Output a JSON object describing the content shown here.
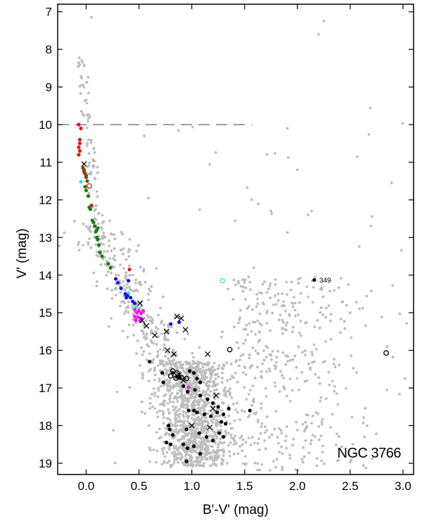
{
  "chart_data": {
    "type": "scatter",
    "title": "",
    "xlabel": "B'-V' (mag)",
    "ylabel": "V' (mag)",
    "xlim": [
      -0.27,
      3.1
    ],
    "ylim": [
      19.3,
      6.8
    ],
    "y_inverted": true,
    "x_ticks": [
      {
        "v": 0,
        "t": "0.0"
      },
      {
        "v": 0.5,
        "t": "0.5"
      },
      {
        "v": 1.0,
        "t": "1.0"
      },
      {
        "v": 1.5,
        "t": "1.5"
      },
      {
        "v": 2.0,
        "t": "2.0"
      },
      {
        "v": 2.5,
        "t": "2.5"
      },
      {
        "v": 3.0,
        "t": "3.0"
      }
    ],
    "y_ticks": [
      {
        "v": 7,
        "t": "7"
      },
      {
        "v": 8,
        "t": "8"
      },
      {
        "v": 9,
        "t": "9"
      },
      {
        "v": 10,
        "t": "10"
      },
      {
        "v": 11,
        "t": "11"
      },
      {
        "v": 12,
        "t": "12"
      },
      {
        "v": 13,
        "t": "13"
      },
      {
        "v": 14,
        "t": "14"
      },
      {
        "v": 15,
        "t": "15"
      },
      {
        "v": 16,
        "t": "16"
      },
      {
        "v": 17,
        "t": "17"
      },
      {
        "v": 18,
        "t": "18"
      },
      {
        "v": 19,
        "t": "19"
      }
    ],
    "annotation": "NGC 3766",
    "reference_line": {
      "y": 10.0,
      "x_from": -0.27,
      "x_to": 1.57,
      "style": "dashed"
    },
    "colors": {
      "field": "#bdbdbd",
      "red": "#e8140e",
      "green": "#1c7d12",
      "cyan": "#2ee8c8",
      "blue": "#1010e8",
      "magenta": "#f01cf0",
      "black": "#000000"
    },
    "series": [
      {
        "name": "red",
        "marker": "filled-circle",
        "color": "red",
        "points": [
          [
            -0.07,
            10.0
          ],
          [
            -0.05,
            10.1
          ],
          [
            -0.06,
            10.4
          ],
          [
            -0.06,
            10.5
          ],
          [
            -0.07,
            10.6
          ],
          [
            -0.06,
            10.7
          ],
          [
            -0.07,
            10.8
          ],
          [
            -0.03,
            11.15
          ],
          [
            -0.02,
            11.25
          ],
          [
            -0.01,
            11.3
          ],
          [
            0.0,
            11.4
          ],
          [
            0.05,
            12.15
          ],
          [
            0.41,
            13.85
          ]
        ]
      },
      {
        "name": "green",
        "marker": "filled-circle",
        "color": "green",
        "points": [
          [
            -0.02,
            11.2
          ],
          [
            0.0,
            11.35
          ],
          [
            0.01,
            11.5
          ],
          [
            -0.01,
            11.65
          ],
          [
            0.0,
            11.75
          ],
          [
            0.02,
            11.9
          ],
          [
            0.03,
            12.2
          ],
          [
            0.04,
            12.25
          ],
          [
            0.06,
            12.55
          ],
          [
            0.07,
            12.6
          ],
          [
            0.08,
            12.7
          ],
          [
            0.09,
            12.85
          ],
          [
            0.1,
            12.8
          ],
          [
            0.11,
            12.75
          ],
          [
            0.1,
            13.0
          ],
          [
            0.11,
            13.05
          ],
          [
            0.12,
            13.2
          ],
          [
            0.13,
            13.4
          ],
          [
            0.15,
            13.5
          ],
          [
            0.21,
            13.7
          ],
          [
            0.23,
            13.8
          ]
        ]
      },
      {
        "name": "cyan",
        "marker": "filled-circle",
        "color": "cyan",
        "points": [
          [
            -0.05,
            11.52
          ],
          [
            0.4,
            14.5
          ],
          [
            0.47,
            14.85
          ]
        ]
      },
      {
        "name": "blue",
        "marker": "filled-circle",
        "color": "blue",
        "points": [
          [
            0.28,
            14.1
          ],
          [
            0.3,
            14.2
          ],
          [
            0.33,
            14.35
          ],
          [
            0.37,
            14.5
          ],
          [
            0.39,
            14.55
          ],
          [
            0.42,
            14.6
          ],
          [
            0.44,
            14.7
          ],
          [
            0.46,
            14.75
          ],
          [
            0.38,
            14.6
          ],
          [
            0.4,
            14.15
          ],
          [
            0.8,
            15.3
          ],
          [
            0.88,
            15.25
          ]
        ]
      },
      {
        "name": "magenta",
        "marker": "filled-circle",
        "color": "magenta",
        "points": [
          [
            0.46,
            14.92
          ],
          [
            0.48,
            15.0
          ],
          [
            0.5,
            14.95
          ],
          [
            0.52,
            15.02
          ],
          [
            0.54,
            14.95
          ],
          [
            0.46,
            15.1
          ],
          [
            0.49,
            15.12
          ],
          [
            0.52,
            15.15
          ],
          [
            0.47,
            15.2
          ],
          [
            0.51,
            15.22
          ],
          [
            0.97,
            16.98
          ]
        ]
      },
      {
        "name": "black-filled",
        "marker": "filled-circle",
        "color": "black",
        "points": [
          [
            2.16,
            14.13
          ],
          [
            0.6,
            16.3
          ],
          [
            0.72,
            16.6
          ],
          [
            0.73,
            16.85
          ],
          [
            0.82,
            16.6
          ],
          [
            0.86,
            16.7
          ],
          [
            0.88,
            16.72
          ],
          [
            0.92,
            16.95
          ],
          [
            0.98,
            16.55
          ],
          [
            1.02,
            16.6
          ],
          [
            1.05,
            16.75
          ],
          [
            1.08,
            16.85
          ],
          [
            0.96,
            17.1
          ],
          [
            1.03,
            17.05
          ],
          [
            1.08,
            17.2
          ],
          [
            1.15,
            17.3
          ],
          [
            1.2,
            17.4
          ],
          [
            1.25,
            17.5
          ],
          [
            0.97,
            17.6
          ],
          [
            1.02,
            17.6
          ],
          [
            1.05,
            17.65
          ],
          [
            1.12,
            17.7
          ],
          [
            1.18,
            17.75
          ],
          [
            1.24,
            17.65
          ],
          [
            1.3,
            17.7
          ],
          [
            1.35,
            17.55
          ],
          [
            1.55,
            17.6
          ],
          [
            1.28,
            17.9
          ],
          [
            1.32,
            17.95
          ],
          [
            0.95,
            18.1
          ],
          [
            1.07,
            18.2
          ],
          [
            1.14,
            18.3
          ],
          [
            1.2,
            18.4
          ],
          [
            1.26,
            18.2
          ],
          [
            1.3,
            18.3
          ],
          [
            0.78,
            18.0
          ],
          [
            0.79,
            18.1
          ],
          [
            0.82,
            18.25
          ],
          [
            0.92,
            18.5
          ],
          [
            0.96,
            18.6
          ],
          [
            1.02,
            18.55
          ],
          [
            1.08,
            18.75
          ],
          [
            0.95,
            18.95
          ],
          [
            0.8,
            18.5
          ],
          [
            0.76,
            18.45
          ]
        ]
      },
      {
        "name": "black-open",
        "marker": "open-circle",
        "color": "black",
        "points": [
          [
            0.82,
            16.55
          ],
          [
            0.86,
            16.6
          ],
          [
            0.8,
            16.68
          ],
          [
            0.85,
            16.74
          ],
          [
            0.9,
            16.72
          ],
          [
            0.95,
            16.75
          ],
          [
            1.36,
            15.98
          ],
          [
            2.84,
            16.07
          ]
        ]
      },
      {
        "name": "red-open",
        "marker": "open-circle",
        "color": "red",
        "points": [
          [
            0.03,
            11.63
          ]
        ]
      },
      {
        "name": "cyan-open",
        "marker": "open-circle",
        "color": "cyan",
        "points": [
          [
            1.29,
            14.15
          ]
        ]
      },
      {
        "name": "black-cross",
        "marker": "cross",
        "color": "black",
        "points": [
          [
            -0.02,
            11.05
          ],
          [
            0.51,
            14.75
          ],
          [
            0.53,
            15.2
          ],
          [
            0.57,
            15.35
          ],
          [
            0.65,
            15.6
          ],
          [
            0.76,
            15.5
          ],
          [
            0.86,
            15.1
          ],
          [
            0.9,
            15.15
          ],
          [
            0.94,
            15.45
          ],
          [
            0.77,
            16.0
          ],
          [
            0.83,
            16.1
          ],
          [
            1.15,
            16.1
          ],
          [
            0.92,
            16.8
          ],
          [
            0.88,
            16.65
          ],
          [
            1.23,
            17.2
          ],
          [
            1.2,
            17.55
          ],
          [
            1.0,
            18.0
          ],
          [
            1.17,
            18.05
          ]
        ]
      }
    ],
    "labels": [
      {
        "text": "349",
        "x": 2.2,
        "y": 14.13
      }
    ]
  }
}
